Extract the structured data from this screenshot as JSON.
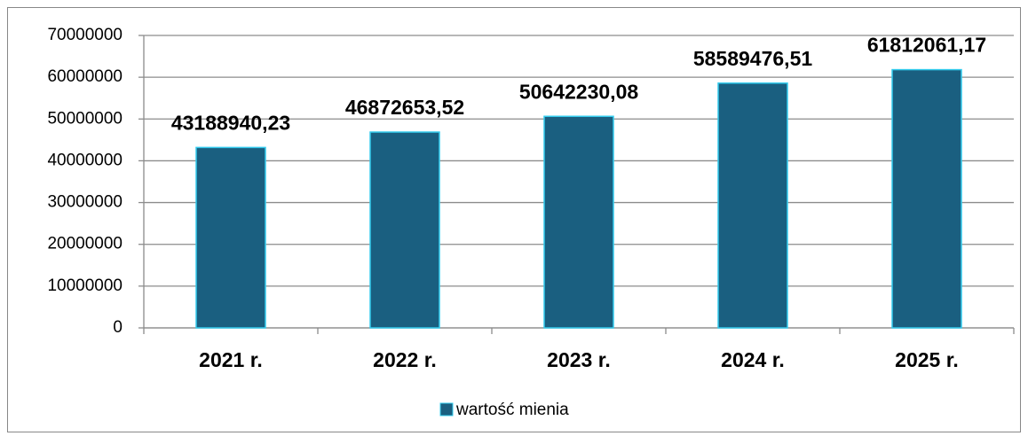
{
  "chart_data": {
    "type": "bar",
    "categories": [
      "2021 r.",
      "2022 r.",
      "2023 r.",
      "2024 r.",
      "2025 r."
    ],
    "series": [
      {
        "name": "wartość mienia",
        "color": "#1a5f80",
        "values": [
          43188940.23,
          46872653.52,
          50642230.08,
          58589476.51,
          61812061.17
        ],
        "value_labels": [
          "43188940,23",
          "46872653,52",
          "50642230,08",
          "58589476,51",
          "61812061,17"
        ]
      }
    ],
    "ylim": [
      0,
      70000000
    ],
    "yticks": [
      0,
      10000000,
      20000000,
      30000000,
      40000000,
      50000000,
      60000000,
      70000000
    ],
    "grid": true,
    "legend": "bottom"
  }
}
